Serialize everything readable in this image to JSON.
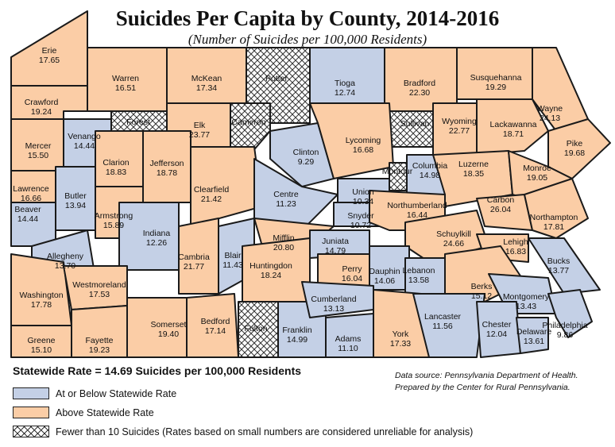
{
  "title": "Suicides Per Capita by County, 2014-2016",
  "subtitle": "(Number of Suicides per 100,000 Residents)",
  "statewide_text": "Statewide Rate = 14.69 Suicides per 100,000 Residents",
  "source_line1": "Data source: Pennsylvania Department of Health.",
  "source_line2": "Prepared by the Center for Rural Pennsylvania.",
  "colors": {
    "below": "#c4d0e6",
    "above": "#fbcda6",
    "few": "hatched"
  },
  "legend": [
    {
      "category": "below",
      "label": "At or Below Statewide Rate"
    },
    {
      "category": "above",
      "label": "Above Statewide Rate"
    },
    {
      "category": "few",
      "label": "Fewer than 10 Suicides (Rates based on small numbers are considered unreliable for analysis)"
    }
  ],
  "counties": [
    {
      "name": "Erie",
      "rate": "17.65",
      "category": "above"
    },
    {
      "name": "Crawford",
      "rate": "19.24",
      "category": "above"
    },
    {
      "name": "Warren",
      "rate": "16.51",
      "category": "above"
    },
    {
      "name": "McKean",
      "rate": "17.34",
      "category": "above"
    },
    {
      "name": "Potter",
      "rate": "",
      "category": "few"
    },
    {
      "name": "Tioga",
      "rate": "12.74",
      "category": "below"
    },
    {
      "name": "Bradford",
      "rate": "22.30",
      "category": "above"
    },
    {
      "name": "Susquehanna",
      "rate": "19.29",
      "category": "above"
    },
    {
      "name": "Wayne",
      "rate": "24.13",
      "category": "above"
    },
    {
      "name": "Forest",
      "rate": "",
      "category": "few"
    },
    {
      "name": "Elk",
      "rate": "23.77",
      "category": "above"
    },
    {
      "name": "Cameron",
      "rate": "",
      "category": "few"
    },
    {
      "name": "Sullivan",
      "rate": "",
      "category": "few"
    },
    {
      "name": "Wyoming",
      "rate": "22.77",
      "category": "above"
    },
    {
      "name": "Lackawanna",
      "rate": "18.71",
      "category": "above"
    },
    {
      "name": "Pike",
      "rate": "19.68",
      "category": "above"
    },
    {
      "name": "Venango",
      "rate": "14.44",
      "category": "below"
    },
    {
      "name": "Mercer",
      "rate": "15.50",
      "category": "above"
    },
    {
      "name": "Clarion",
      "rate": "18.83",
      "category": "above"
    },
    {
      "name": "Jefferson",
      "rate": "18.78",
      "category": "above"
    },
    {
      "name": "Clinton",
      "rate": "9.29",
      "category": "below"
    },
    {
      "name": "Lycoming",
      "rate": "16.68",
      "category": "above"
    },
    {
      "name": "Montour",
      "rate": "",
      "category": "few"
    },
    {
      "name": "Columbia",
      "rate": "14.98",
      "category": "below"
    },
    {
      "name": "Luzerne",
      "rate": "18.35",
      "category": "above"
    },
    {
      "name": "Monroe",
      "rate": "19.05",
      "category": "above"
    },
    {
      "name": "Lawrence",
      "rate": "16.66",
      "category": "above"
    },
    {
      "name": "Butler",
      "rate": "13.94",
      "category": "below"
    },
    {
      "name": "Armstrong",
      "rate": "15.89",
      "category": "above"
    },
    {
      "name": "Clearfield",
      "rate": "21.42",
      "category": "above"
    },
    {
      "name": "Centre",
      "rate": "11.23",
      "category": "below"
    },
    {
      "name": "Union",
      "rate": "10.34",
      "category": "below"
    },
    {
      "name": "Snyder",
      "rate": "10.72",
      "category": "below"
    },
    {
      "name": "Northumberland",
      "rate": "16.44",
      "category": "above"
    },
    {
      "name": "Carbon",
      "rate": "26.04",
      "category": "above"
    },
    {
      "name": "Northampton",
      "rate": "17.81",
      "category": "above"
    },
    {
      "name": "Beaver",
      "rate": "14.44",
      "category": "below"
    },
    {
      "name": "Indiana",
      "rate": "12.26",
      "category": "below"
    },
    {
      "name": "Allegheny",
      "rate": "13.70",
      "category": "below"
    },
    {
      "name": "Cambria",
      "rate": "21.77",
      "category": "above"
    },
    {
      "name": "Blair",
      "rate": "11.43",
      "category": "below"
    },
    {
      "name": "Mifflin",
      "rate": "20.80",
      "category": "above"
    },
    {
      "name": "Juniata",
      "rate": "14.79",
      "category": "below"
    },
    {
      "name": "Huntingdon",
      "rate": "18.24",
      "category": "above"
    },
    {
      "name": "Schuylkill",
      "rate": "24.66",
      "category": "above"
    },
    {
      "name": "Lehigh",
      "rate": "16.83",
      "category": "above"
    },
    {
      "name": "Bucks",
      "rate": "13.77",
      "category": "below"
    },
    {
      "name": "Washington",
      "rate": "17.78",
      "category": "above"
    },
    {
      "name": "Westmoreland",
      "rate": "17.53",
      "category": "above"
    },
    {
      "name": "Perry",
      "rate": "16.04",
      "category": "above"
    },
    {
      "name": "Dauphin",
      "rate": "14.06",
      "category": "below"
    },
    {
      "name": "Lebanon",
      "rate": "13.58",
      "category": "below"
    },
    {
      "name": "Berks",
      "rate": "15.12",
      "category": "above"
    },
    {
      "name": "Montgomery",
      "rate": "13.43",
      "category": "below"
    },
    {
      "name": "Somerset",
      "rate": "19.40",
      "category": "above"
    },
    {
      "name": "Bedford",
      "rate": "17.14",
      "category": "above"
    },
    {
      "name": "Fulton",
      "rate": "",
      "category": "few"
    },
    {
      "name": "Franklin",
      "rate": "14.99",
      "category": "below"
    },
    {
      "name": "Cumberland",
      "rate": "13.13",
      "category": "below"
    },
    {
      "name": "Adams",
      "rate": "11.10",
      "category": "below"
    },
    {
      "name": "York",
      "rate": "17.33",
      "category": "above"
    },
    {
      "name": "Lancaster",
      "rate": "11.56",
      "category": "below"
    },
    {
      "name": "Chester",
      "rate": "12.04",
      "category": "below"
    },
    {
      "name": "Delaware",
      "rate": "13.61",
      "category": "below"
    },
    {
      "name": "Philadelphia",
      "rate": "9.86",
      "category": "below"
    },
    {
      "name": "Greene",
      "rate": "15.10",
      "category": "above"
    },
    {
      "name": "Fayette",
      "rate": "19.23",
      "category": "above"
    }
  ]
}
